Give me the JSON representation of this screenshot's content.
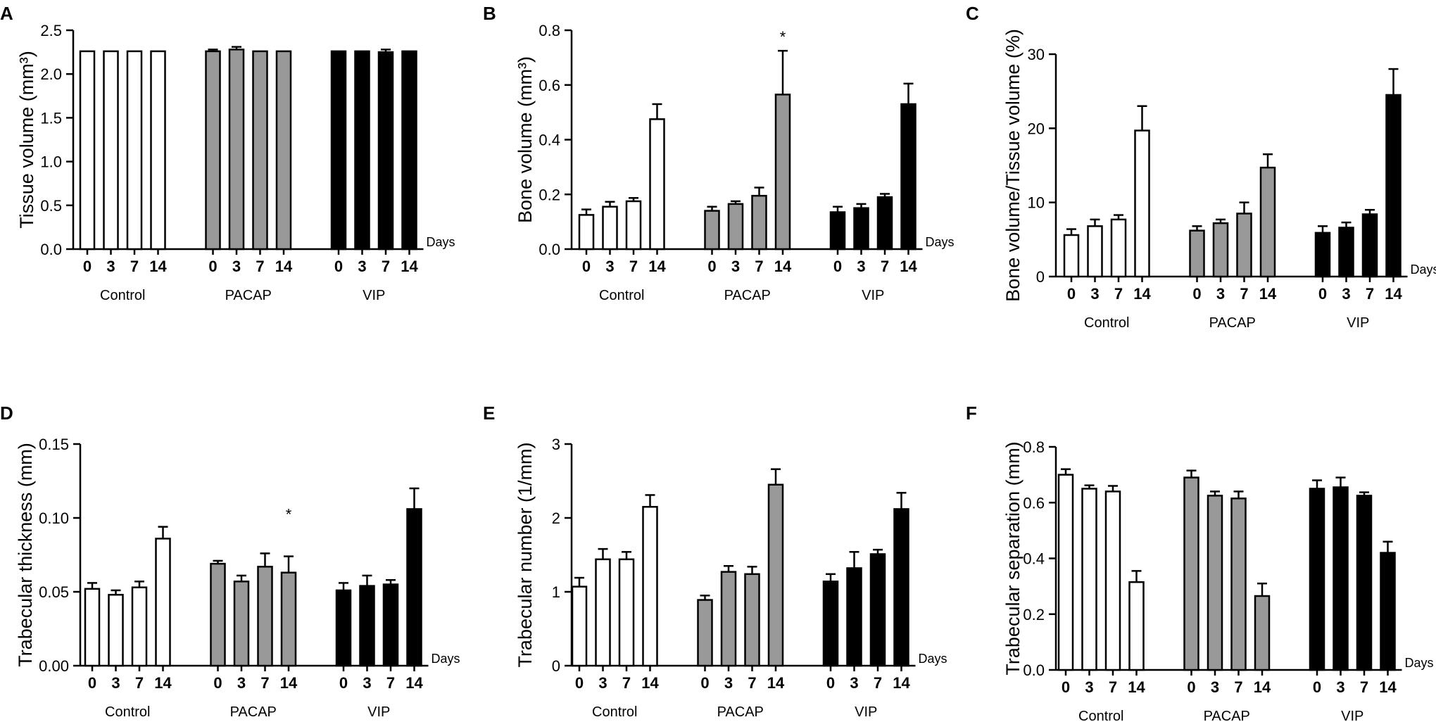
{
  "chart_data": [
    {
      "panel": "A",
      "type": "bar",
      "ylabel": "Tissue volume (mm³)",
      "xlabel": "Days",
      "ylim": [
        0,
        2.5
      ],
      "ticks": [
        0.0,
        0.5,
        1.0,
        1.5,
        2.0,
        2.5
      ],
      "tick_labels": [
        "0.0",
        "0.5",
        "1.0",
        "1.5",
        "2.0",
        "2.5"
      ],
      "groups": [
        "Control",
        "PACAP",
        "VIP"
      ],
      "categories": [
        "0",
        "3",
        "7",
        "14"
      ],
      "colors": {
        "Control": "#ffffff",
        "PACAP": "#999999",
        "VIP": "#000000"
      },
      "series": [
        {
          "name": "Control",
          "values": [
            2.26,
            2.26,
            2.26,
            2.26
          ],
          "errors": [
            0,
            0,
            0,
            0
          ]
        },
        {
          "name": "PACAP",
          "values": [
            2.26,
            2.28,
            2.26,
            2.26
          ],
          "errors": [
            0.02,
            0.03,
            0,
            0
          ]
        },
        {
          "name": "VIP",
          "values": [
            2.26,
            2.26,
            2.25,
            2.26
          ],
          "errors": [
            0,
            0,
            0.03,
            0
          ]
        }
      ],
      "significance": []
    },
    {
      "panel": "B",
      "type": "bar",
      "ylabel": "Bone volume (mm³)",
      "xlabel": "Days",
      "ylim": [
        0,
        0.8
      ],
      "ticks": [
        0.0,
        0.2,
        0.4,
        0.6,
        0.8
      ],
      "tick_labels": [
        "0.0",
        "0.2",
        "0.4",
        "0.6",
        "0.8"
      ],
      "groups": [
        "Control",
        "PACAP",
        "VIP"
      ],
      "categories": [
        "0",
        "3",
        "7",
        "14"
      ],
      "colors": {
        "Control": "#ffffff",
        "PACAP": "#999999",
        "VIP": "#000000"
      },
      "series": [
        {
          "name": "Control",
          "values": [
            0.125,
            0.155,
            0.175,
            0.475
          ],
          "errors": [
            0.02,
            0.018,
            0.012,
            0.055
          ]
        },
        {
          "name": "PACAP",
          "values": [
            0.14,
            0.165,
            0.195,
            0.565
          ],
          "errors": [
            0.015,
            0.01,
            0.03,
            0.16
          ]
        },
        {
          "name": "VIP",
          "values": [
            0.135,
            0.15,
            0.19,
            0.53
          ],
          "errors": [
            0.02,
            0.015,
            0.012,
            0.075
          ]
        }
      ],
      "significance": [
        {
          "group": "PACAP",
          "category": "14",
          "label": "*"
        }
      ]
    },
    {
      "panel": "C",
      "type": "bar",
      "ylabel": "Bone volume/Tissue volume (%)",
      "xlabel": "Days",
      "ylim": [
        0,
        30
      ],
      "ticks": [
        0,
        10,
        20,
        30
      ],
      "tick_labels": [
        "0",
        "10",
        "20",
        "30"
      ],
      "groups": [
        "Control",
        "PACAP",
        "VIP"
      ],
      "categories": [
        "0",
        "3",
        "7",
        "14"
      ],
      "colors": {
        "Control": "#ffffff",
        "PACAP": "#999999",
        "VIP": "#000000"
      },
      "series": [
        {
          "name": "Control",
          "values": [
            5.6,
            6.8,
            7.7,
            19.7
          ],
          "errors": [
            0.8,
            0.9,
            0.6,
            3.3
          ]
        },
        {
          "name": "PACAP",
          "values": [
            6.2,
            7.2,
            8.5,
            14.7
          ],
          "errors": [
            0.6,
            0.5,
            1.5,
            1.8
          ]
        },
        {
          "name": "VIP",
          "values": [
            5.9,
            6.6,
            8.4,
            24.5
          ],
          "errors": [
            0.9,
            0.7,
            0.6,
            3.5
          ]
        }
      ],
      "significance": []
    },
    {
      "panel": "D",
      "type": "bar",
      "ylabel": "Trabecular thickness (mm)",
      "xlabel": "Days",
      "ylim": [
        0,
        0.15
      ],
      "ticks": [
        0.0,
        0.05,
        0.1,
        0.15
      ],
      "tick_labels": [
        "0.00",
        "0.05",
        "0.10",
        "0.15"
      ],
      "groups": [
        "Control",
        "PACAP",
        "VIP"
      ],
      "categories": [
        "0",
        "3",
        "7",
        "14"
      ],
      "colors": {
        "Control": "#ffffff",
        "PACAP": "#999999",
        "VIP": "#000000"
      },
      "series": [
        {
          "name": "Control",
          "values": [
            0.052,
            0.048,
            0.053,
            0.086
          ],
          "errors": [
            0.004,
            0.003,
            0.004,
            0.008
          ]
        },
        {
          "name": "PACAP",
          "values": [
            0.069,
            0.057,
            0.067,
            0.063
          ],
          "errors": [
            0.002,
            0.004,
            0.009,
            0.011
          ]
        },
        {
          "name": "VIP",
          "values": [
            0.051,
            0.054,
            0.055,
            0.106
          ],
          "errors": [
            0.005,
            0.007,
            0.003,
            0.014
          ]
        }
      ],
      "significance": [
        {
          "group": "PACAP",
          "category": "14",
          "label": "*"
        }
      ]
    },
    {
      "panel": "E",
      "type": "bar",
      "ylabel": "Trabecular number (1/mm)",
      "xlabel": "Days",
      "ylim": [
        0,
        3
      ],
      "ticks": [
        0,
        1,
        2,
        3
      ],
      "tick_labels": [
        "0",
        "1",
        "2",
        "3"
      ],
      "groups": [
        "Control",
        "PACAP",
        "VIP"
      ],
      "categories": [
        "0",
        "3",
        "7",
        "14"
      ],
      "colors": {
        "Control": "#ffffff",
        "PACAP": "#999999",
        "VIP": "#000000"
      },
      "series": [
        {
          "name": "Control",
          "values": [
            1.07,
            1.44,
            1.44,
            2.15
          ],
          "errors": [
            0.12,
            0.14,
            0.1,
            0.16
          ]
        },
        {
          "name": "PACAP",
          "values": [
            0.89,
            1.27,
            1.24,
            2.45
          ],
          "errors": [
            0.06,
            0.08,
            0.1,
            0.21
          ]
        },
        {
          "name": "VIP",
          "values": [
            1.14,
            1.32,
            1.51,
            2.12
          ],
          "errors": [
            0.1,
            0.22,
            0.06,
            0.22
          ]
        }
      ],
      "significance": []
    },
    {
      "panel": "F",
      "type": "bar",
      "ylabel": "Trabecular separation (mm)",
      "xlabel": "Days",
      "ylim": [
        0,
        0.8
      ],
      "ticks": [
        0.0,
        0.2,
        0.4,
        0.6,
        0.8
      ],
      "tick_labels": [
        "0.0",
        "0.2",
        "0.4",
        "0.6",
        "0.8"
      ],
      "groups": [
        "Control",
        "PACAP",
        "VIP"
      ],
      "categories": [
        "0",
        "3",
        "7",
        "14"
      ],
      "colors": {
        "Control": "#ffffff",
        "PACAP": "#999999",
        "VIP": "#000000"
      },
      "series": [
        {
          "name": "Control",
          "values": [
            0.7,
            0.65,
            0.64,
            0.315
          ],
          "errors": [
            0.02,
            0.012,
            0.02,
            0.04
          ]
        },
        {
          "name": "PACAP",
          "values": [
            0.69,
            0.625,
            0.615,
            0.265
          ],
          "errors": [
            0.025,
            0.015,
            0.025,
            0.045
          ]
        },
        {
          "name": "VIP",
          "values": [
            0.65,
            0.655,
            0.625,
            0.42
          ],
          "errors": [
            0.03,
            0.035,
            0.012,
            0.04
          ]
        }
      ],
      "significance": []
    }
  ]
}
